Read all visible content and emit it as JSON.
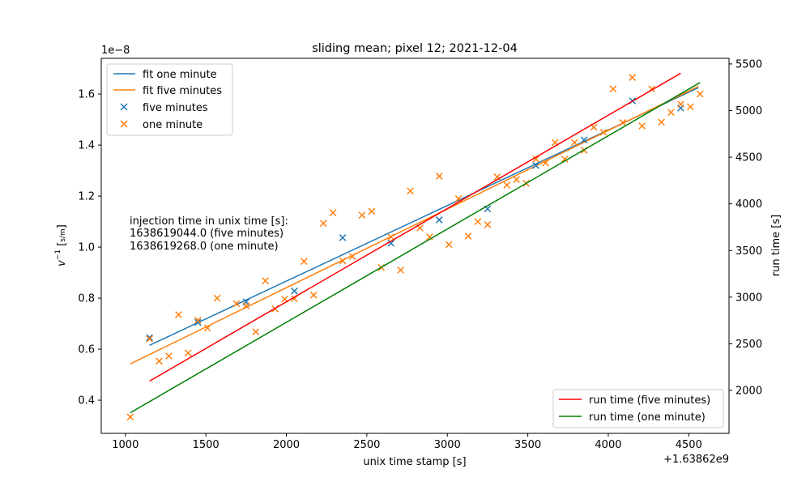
{
  "chart_data": {
    "type": "scatter",
    "title": "sliding mean; pixel 12; 2021-12-04",
    "xlabel": "unix time stamp [s]",
    "ylabel": "v⁻¹ [s/m]",
    "ylabel_right": "run time [s]",
    "x_offset_label": "+1.63862e9",
    "y_exponent_label": "1e−8",
    "x_offset": 1638620000,
    "y_scale": 1e-08,
    "xlim": [
      1638620850,
      1638624750
    ],
    "ylim": [
      2.7e-09,
      1.74e-08
    ],
    "ylim_right": [
      1540,
      5560
    ],
    "x_ticks": [
      1638621000,
      1638621500,
      1638622000,
      1638622500,
      1638623000,
      1638623500,
      1638624000,
      1638624500
    ],
    "x_tick_labels": [
      "1000",
      "1500",
      "2000",
      "2500",
      "3000",
      "3500",
      "4000",
      "4500"
    ],
    "y_ticks": [
      0.4,
      0.6,
      0.8,
      1.0,
      1.2,
      1.4,
      1.6
    ],
    "y_tick_labels": [
      "0.4",
      "0.6",
      "0.8",
      "1.0",
      "1.2",
      "1.4",
      "1.6"
    ],
    "y_ticks_right": [
      2000,
      2500,
      3000,
      3500,
      4000,
      4500,
      5000,
      5500
    ],
    "y_tick_labels_right": [
      "2000",
      "2500",
      "3000",
      "3500",
      "4000",
      "4500",
      "5000",
      "5500"
    ],
    "grid": false,
    "annotation": [
      "injection time in unix time [s]:",
      "1638619044.0 (five minutes)",
      "1638619268.0 (one minute)"
    ],
    "legend_left": {
      "placement": "upper left"
    },
    "legend_right": {
      "placement": "lower right"
    },
    "series": [
      {
        "name": "fit one minute",
        "kind": "line",
        "axis": "left",
        "color": "#1f77b4",
        "points": [
          [
            1638621150,
            6.15e-09
          ],
          [
            1638624560,
            1.625e-08
          ]
        ]
      },
      {
        "name": "fit five minutes",
        "kind": "line",
        "axis": "left",
        "color": "#ff7f0e",
        "points": [
          [
            1638621030,
            5.42e-09
          ],
          [
            1638624560,
            1.63e-08
          ]
        ]
      },
      {
        "name": "five minutes",
        "kind": "scatter",
        "axis": "left",
        "color": "#1f77b4",
        "points": [
          [
            1638621150,
            6.45e-09
          ],
          [
            1638621450,
            7.05e-09
          ],
          [
            1638621750,
            7.85e-09
          ],
          [
            1638622050,
            8.28e-09
          ],
          [
            1638622350,
            1.037e-08
          ],
          [
            1638622650,
            1.015e-08
          ],
          [
            1638622950,
            1.107e-08
          ],
          [
            1638623250,
            1.15e-08
          ],
          [
            1638623550,
            1.32e-08
          ],
          [
            1638623850,
            1.42e-08
          ],
          [
            1638624150,
            1.573e-08
          ],
          [
            1638624450,
            1.545e-08
          ]
        ]
      },
      {
        "name": "one minute",
        "kind": "scatter",
        "axis": "left",
        "color": "#ff7f0e",
        "points": [
          [
            1638621030,
            3.34e-09
          ],
          [
            1638621150,
            6.4e-09
          ],
          [
            1638621210,
            5.53e-09
          ],
          [
            1638621270,
            5.73e-09
          ],
          [
            1638621330,
            7.35e-09
          ],
          [
            1638621390,
            5.85e-09
          ],
          [
            1638621450,
            7.13e-09
          ],
          [
            1638621510,
            6.83e-09
          ],
          [
            1638621570,
            8e-09
          ],
          [
            1638621690,
            7.78e-09
          ],
          [
            1638621750,
            7.7e-09
          ],
          [
            1638621810,
            6.68e-09
          ],
          [
            1638621870,
            8.68e-09
          ],
          [
            1638621930,
            7.58e-09
          ],
          [
            1638621990,
            7.96e-09
          ],
          [
            1638622050,
            7.98e-09
          ],
          [
            1638622110,
            9.44e-09
          ],
          [
            1638622170,
            8.12e-09
          ],
          [
            1638622230,
            1.093e-08
          ],
          [
            1638622290,
            1.135e-08
          ],
          [
            1638622350,
            9.46e-09
          ],
          [
            1638622410,
            9.63e-09
          ],
          [
            1638622470,
            1.125e-08
          ],
          [
            1638622530,
            1.14e-08
          ],
          [
            1638622590,
            9.2e-09
          ],
          [
            1638622650,
            1.04e-08
          ],
          [
            1638622710,
            9.1e-09
          ],
          [
            1638622770,
            1.22e-08
          ],
          [
            1638622830,
            1.075e-08
          ],
          [
            1638622890,
            1.04e-08
          ],
          [
            1638622950,
            1.278e-08
          ],
          [
            1638623010,
            1.01e-08
          ],
          [
            1638623070,
            1.19e-08
          ],
          [
            1638623130,
            1.043e-08
          ],
          [
            1638623190,
            1.1e-08
          ],
          [
            1638623250,
            1.088e-08
          ],
          [
            1638623310,
            1.275e-08
          ],
          [
            1638623370,
            1.243e-08
          ],
          [
            1638623430,
            1.265e-08
          ],
          [
            1638623490,
            1.25e-08
          ],
          [
            1638623550,
            1.345e-08
          ],
          [
            1638623610,
            1.33e-08
          ],
          [
            1638623670,
            1.41e-08
          ],
          [
            1638623730,
            1.345e-08
          ],
          [
            1638623790,
            1.41e-08
          ],
          [
            1638623850,
            1.38e-08
          ],
          [
            1638623910,
            1.47e-08
          ],
          [
            1638623970,
            1.45e-08
          ],
          [
            1638624030,
            1.62e-08
          ],
          [
            1638624090,
            1.488e-08
          ],
          [
            1638624150,
            1.665e-08
          ],
          [
            1638624210,
            1.475e-08
          ],
          [
            1638624270,
            1.62e-08
          ],
          [
            1638624330,
            1.49e-08
          ],
          [
            1638624390,
            1.528e-08
          ],
          [
            1638624450,
            1.56e-08
          ],
          [
            1638624510,
            1.55e-08
          ],
          [
            1638624570,
            1.6e-08
          ]
        ]
      },
      {
        "name": "run time (five minutes)",
        "kind": "line",
        "axis": "right",
        "color": "#ff0000",
        "points": [
          [
            1638621150,
            2100
          ],
          [
            1638624450,
            5400
          ]
        ]
      },
      {
        "name": "run time (one minute)",
        "kind": "line",
        "axis": "right",
        "color": "#008000",
        "points": [
          [
            1638621030,
            1760
          ],
          [
            1638624570,
            5300
          ]
        ]
      }
    ]
  }
}
